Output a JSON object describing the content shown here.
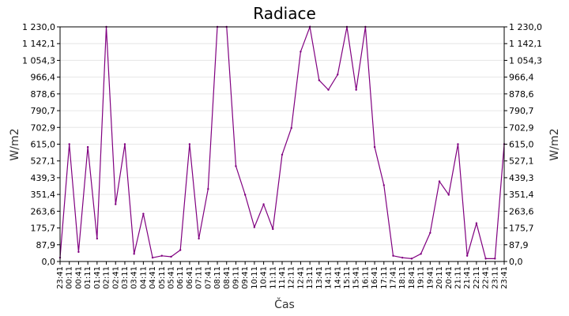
{
  "chart_data": {
    "type": "line",
    "title": "Radiace",
    "xlabel": "Čas",
    "ylabel_left": "W/m2",
    "ylabel_right": "W/m2",
    "ylim": [
      0,
      1230
    ],
    "y_ticks": [
      "0,0",
      "87,9",
      "175,7",
      "263,6",
      "351,4",
      "439,3",
      "527,1",
      "615,0",
      "702,9",
      "790,7",
      "878,6",
      "966,4",
      "1 054,3",
      "1 142,1",
      "1 230,0"
    ],
    "x_ticks": [
      "23:41",
      "00:11",
      "00:41",
      "01:11",
      "01:41",
      "02:11",
      "02:41",
      "03:11",
      "03:41",
      "04:11",
      "04:41",
      "05:11",
      "05:41",
      "06:11",
      "06:41",
      "07:11",
      "07:41",
      "08:11",
      "08:41",
      "09:11",
      "09:41",
      "10:11",
      "10:41",
      "11:11",
      "11:41",
      "12:11",
      "12:41",
      "13:11",
      "13:41",
      "14:11",
      "14:41",
      "15:11",
      "15:41",
      "16:11",
      "16:41",
      "17:11",
      "17:41",
      "18:11",
      "18:41",
      "19:11",
      "19:41",
      "20:11",
      "20:41",
      "21:11",
      "21:41",
      "22:11",
      "22:41",
      "23:11",
      "23:41"
    ],
    "grid": true,
    "colors": {
      "series": "#800080",
      "grid": "#e6e6e6",
      "axis": "#000000"
    },
    "series": [
      {
        "name": "",
        "x": [
          0,
          0.5,
          1,
          1.5,
          2,
          2.5,
          3,
          3.5,
          4,
          4.5,
          5,
          5.5,
          6,
          6.5,
          7,
          7.5,
          8,
          8.5,
          9,
          9.5,
          10,
          10.5,
          11,
          11.5,
          12,
          12.5,
          13,
          13.5,
          14,
          14.5,
          15,
          15.5,
          16,
          16.5,
          17,
          17.5,
          18,
          18.5,
          19,
          19.5,
          20,
          20.5,
          21,
          21.5,
          22,
          22.5,
          23,
          23.5,
          24
        ],
        "y": [
          20,
          615,
          50,
          600,
          120,
          1230,
          300,
          615,
          40,
          250,
          20,
          30,
          25,
          60,
          615,
          120,
          380,
          1230,
          1230,
          500,
          350,
          180,
          300,
          170,
          560,
          700,
          1100,
          1230,
          950,
          900,
          980,
          1230,
          900,
          1230,
          600,
          400,
          30,
          20,
          15,
          40,
          150,
          420,
          350,
          615,
          30,
          200,
          15,
          15,
          615
        ]
      }
    ]
  }
}
